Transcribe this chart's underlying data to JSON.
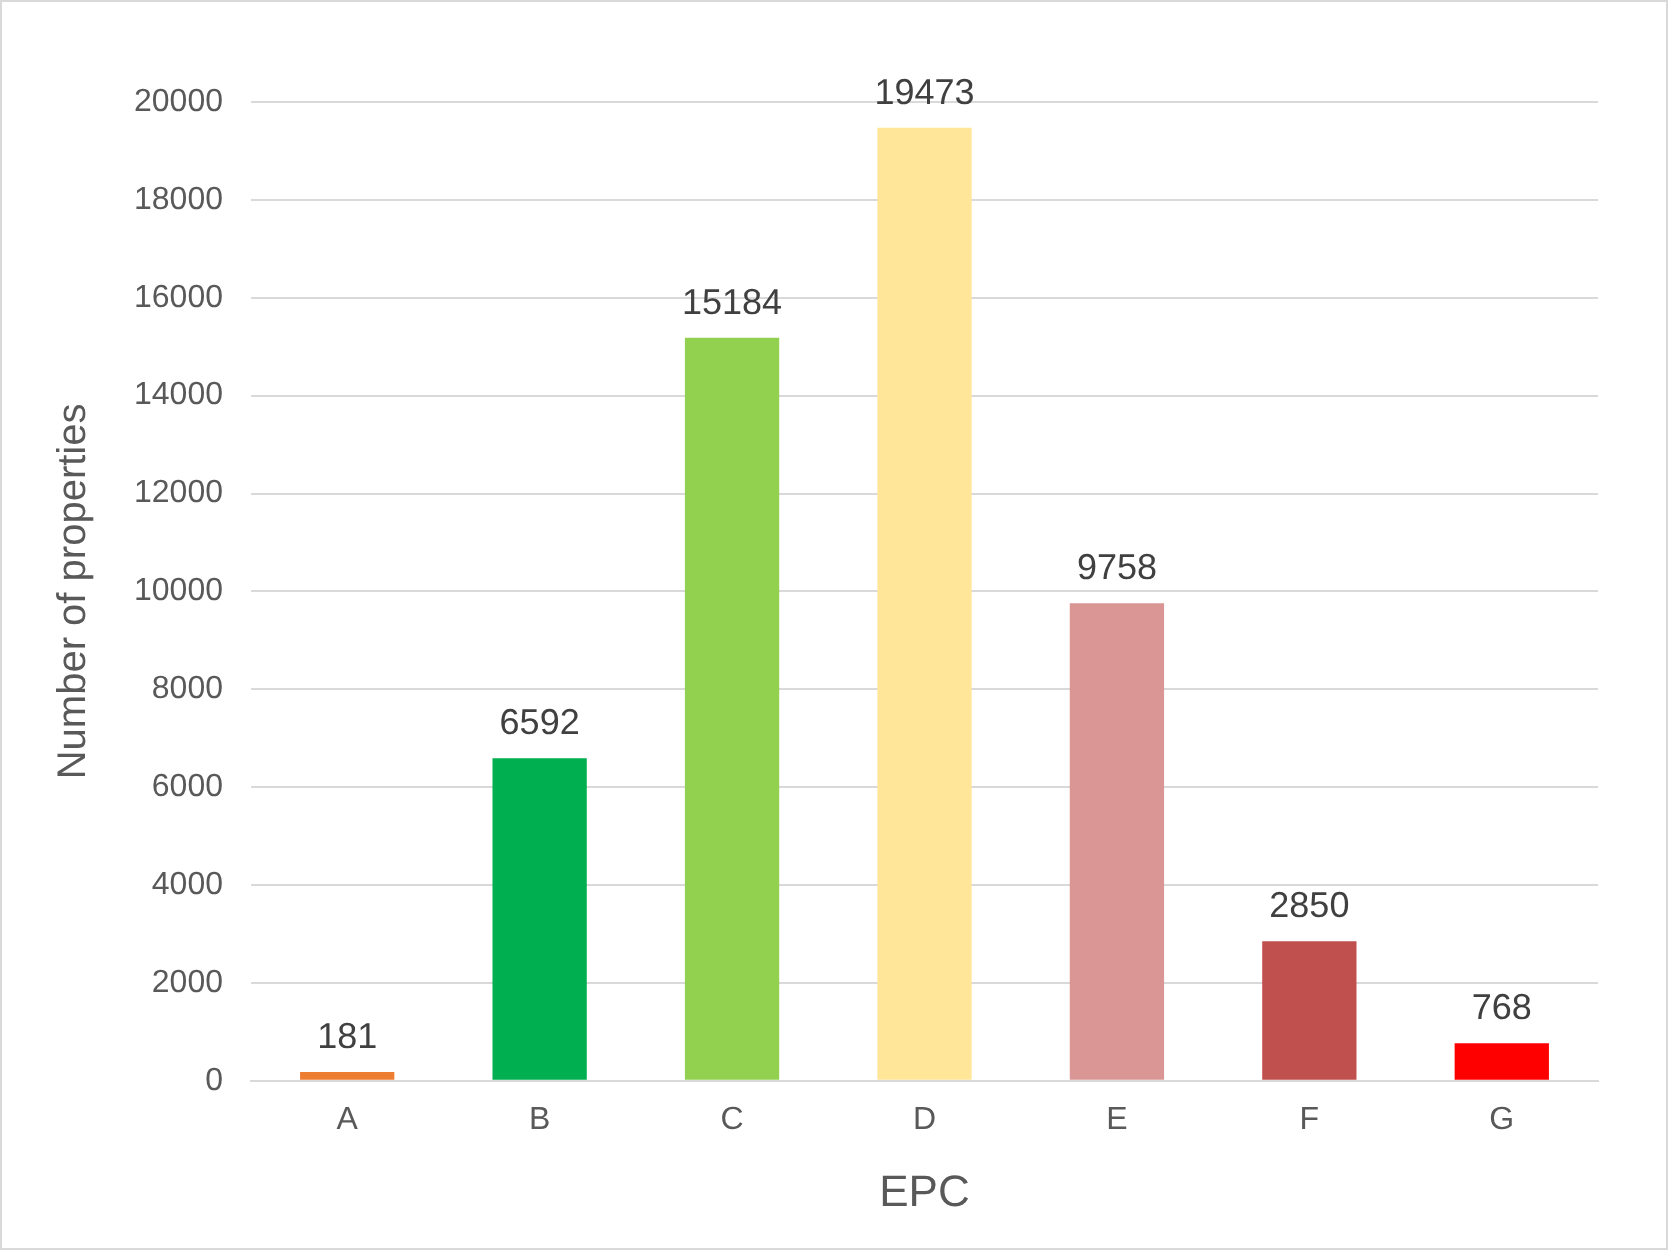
{
  "chart_data": {
    "type": "bar",
    "xlabel": "EPC",
    "ylabel": "Number of properties",
    "categories": [
      "A",
      "B",
      "C",
      "D",
      "E",
      "F",
      "G"
    ],
    "values": [
      181,
      6592,
      15184,
      19473,
      9758,
      2850,
      768
    ],
    "colors": [
      "#ed7d31",
      "#00b050",
      "#92d050",
      "#ffe699",
      "#d99694",
      "#c0504d",
      "#ff0000"
    ],
    "ylim": [
      0,
      20000
    ],
    "yticks": [
      0,
      2000,
      4000,
      6000,
      8000,
      10000,
      12000,
      14000,
      16000,
      18000,
      20000
    ],
    "grid": "y",
    "data_labels": true,
    "legend": false
  }
}
